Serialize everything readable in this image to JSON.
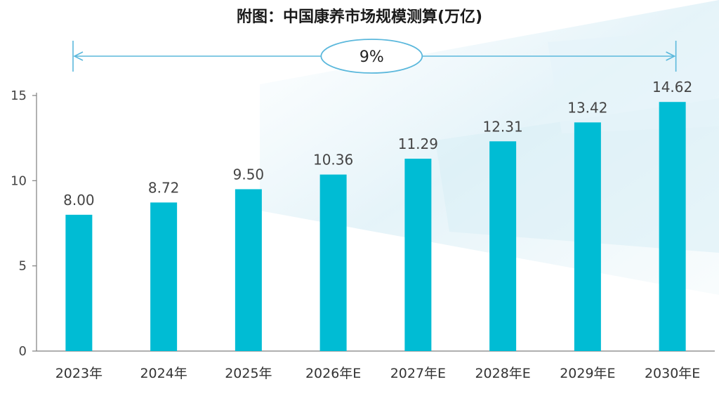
{
  "title": "附图：中国康养市场规模测算(万亿)",
  "annotation": {
    "text": "9%",
    "color": "#5bb8dc"
  },
  "colors": {
    "bar": "#00bcd4",
    "axis": "#7f7f7f"
  },
  "chart_data": {
    "type": "bar",
    "title": "附图：中国康养市场规模测算(万亿)",
    "categories": [
      "2023年",
      "2024年",
      "2025年",
      "2026年E",
      "2027年E",
      "2028年E",
      "2029年E",
      "2030年E"
    ],
    "values": [
      8.0,
      8.72,
      9.5,
      10.36,
      11.29,
      12.31,
      13.42,
      14.62
    ],
    "value_labels": [
      "8.00",
      "8.72",
      "9.50",
      "10.36",
      "11.29",
      "12.31",
      "13.42",
      "14.62"
    ],
    "ylim": [
      0,
      15
    ],
    "yticks": [
      0,
      5,
      10,
      15
    ],
    "xlabel": "",
    "ylabel": "",
    "grid": false,
    "annotation": "9%"
  }
}
